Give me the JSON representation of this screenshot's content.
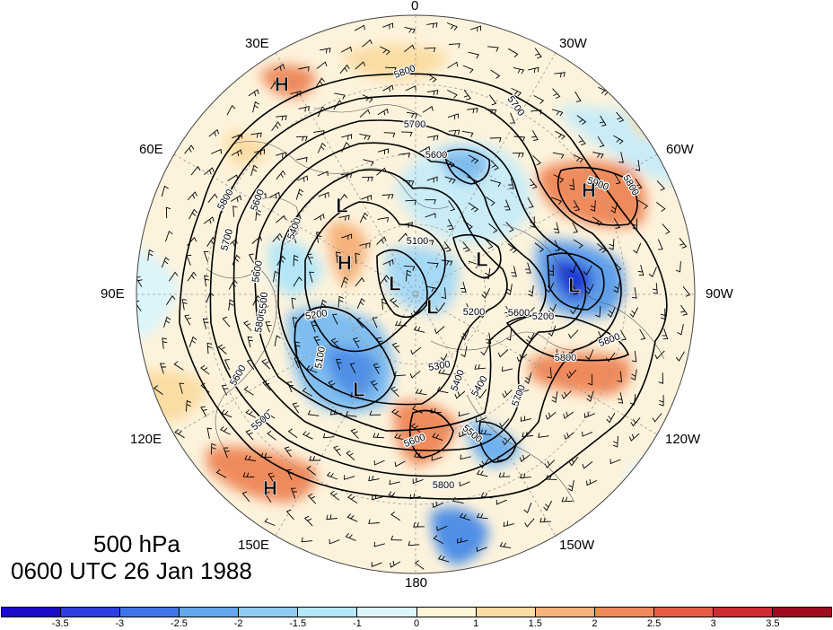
{
  "title": {
    "level": "500 hPa",
    "time": "0600 UTC 26 Jan 1988"
  },
  "longitude_labels": [
    {
      "id": "lon-0",
      "text": "0"
    },
    {
      "id": "lon-30w",
      "text": "30W"
    },
    {
      "id": "lon-60w",
      "text": "60W"
    },
    {
      "id": "lon-90w",
      "text": "90W"
    },
    {
      "id": "lon-120w",
      "text": "120W"
    },
    {
      "id": "lon-150w",
      "text": "150W"
    },
    {
      "id": "lon-180",
      "text": "180"
    },
    {
      "id": "lon-150e",
      "text": "150E"
    },
    {
      "id": "lon-120e",
      "text": "120E"
    },
    {
      "id": "lon-90e",
      "text": "90E"
    },
    {
      "id": "lon-60e",
      "text": "60E"
    },
    {
      "id": "lon-30e",
      "text": "30E"
    }
  ],
  "pressure_centers": [
    {
      "type": "H",
      "label": "H"
    },
    {
      "type": "H",
      "label": "H"
    },
    {
      "type": "H",
      "label": "H"
    },
    {
      "type": "H",
      "label": "H"
    },
    {
      "type": "L",
      "label": "L"
    },
    {
      "type": "L",
      "label": "L"
    },
    {
      "type": "L",
      "label": "L"
    },
    {
      "type": "L",
      "label": "L"
    },
    {
      "type": "L",
      "label": "L"
    },
    {
      "type": "L",
      "label": "L"
    }
  ],
  "contour_labels": [
    "5800",
    "5700",
    "5700",
    "5600",
    "5800",
    "5600",
    "5800",
    "5700",
    "5500",
    "5400",
    "5100",
    "5200",
    "5100",
    "5200",
    "5600",
    "5300",
    "5400",
    "5700",
    "5600",
    "5500",
    "5800",
    "5800",
    "5900",
    "5800",
    "5800",
    "5600",
    "5500",
    "5400",
    "5200",
    "5600"
  ],
  "colorbar": {
    "colors": [
      "#1a0bc8",
      "#2d3fe0",
      "#3f75e8",
      "#63a8ee",
      "#8dcbf2",
      "#b4e8f8",
      "#dcf5fa",
      "#fff6d8",
      "#fbdca2",
      "#f6b27b",
      "#ef8a5c",
      "#e85b45",
      "#cf2c33",
      "#a10a1e"
    ],
    "ticks": [
      "-3.5",
      "-3",
      "-2.5",
      "-2",
      "-1.5",
      "-1",
      "0",
      "1",
      "1.5",
      "2",
      "2.5",
      "3",
      "3.5"
    ]
  }
}
